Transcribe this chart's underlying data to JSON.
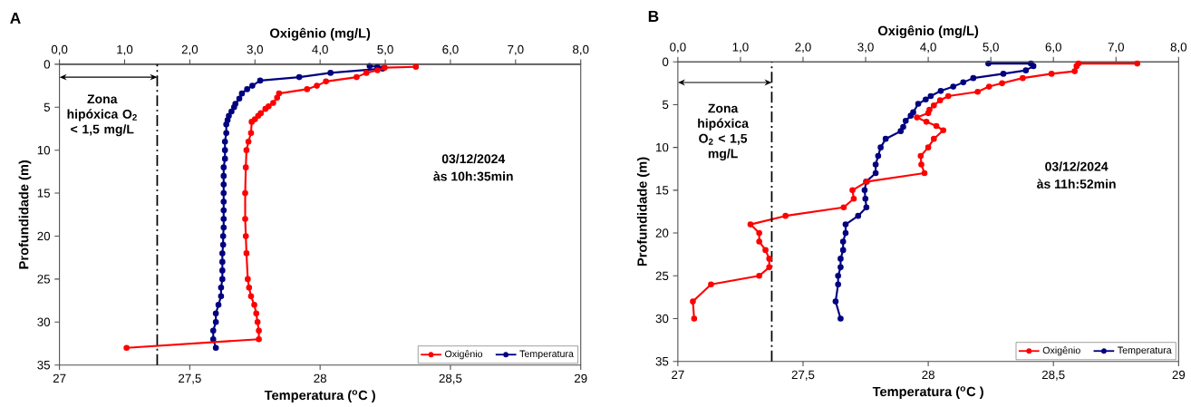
{
  "chart_data": [
    {
      "type": "line",
      "title": "A",
      "xlabel": "Temperatura ($^{o}$C )",
      "x2label": "Oxigênio (mg/L)",
      "ylabel": "Profundidade (m)",
      "xlim": [
        27,
        29
      ],
      "xticks": [
        {
          "value": 27,
          "label": "27"
        },
        {
          "value": 27.5,
          "label": "27,5"
        },
        {
          "value": 28,
          "label": "28"
        },
        {
          "value": 28.5,
          "label": "28,5"
        },
        {
          "value": 29,
          "label": "29"
        }
      ],
      "x2lim": [
        0,
        8
      ],
      "x2ticks": [
        {
          "value": 0,
          "label": "0,0"
        },
        {
          "value": 1,
          "label": "1,0"
        },
        {
          "value": 2,
          "label": "2,0"
        },
        {
          "value": 3,
          "label": "3,0"
        },
        {
          "value": 4,
          "label": "4,0"
        },
        {
          "value": 5,
          "label": "5,0"
        },
        {
          "value": 6,
          "label": "6,0"
        },
        {
          "value": 7,
          "label": "7,0"
        },
        {
          "value": 8,
          "label": "8,0"
        }
      ],
      "ylim": [
        35,
        0
      ],
      "yticks": [
        0,
        5,
        10,
        15,
        20,
        25,
        30,
        35
      ],
      "legend": "bottom right",
      "marker": "circle",
      "series": [
        {
          "name": "Oxigênio",
          "color": "#ff0000",
          "axis": "x2",
          "x": [
            5.47,
            4.99,
            4.88,
            4.71,
            4.56,
            4.09,
            3.95,
            3.8,
            3.37,
            3.34,
            3.28,
            3.21,
            3.16,
            3.09,
            3.05,
            3.0,
            2.95,
            2.94,
            2.9,
            2.87,
            2.86,
            2.85,
            2.85,
            2.86,
            2.87,
            2.89,
            2.91,
            2.94,
            2.99,
            3.02,
            3.04,
            3.06,
            3.06,
            1.03
          ],
          "values": [
            0.3,
            0.4,
            0.7,
            1.0,
            1.5,
            2.0,
            2.5,
            2.9,
            3.4,
            3.9,
            4.5,
            4.9,
            5.2,
            5.7,
            6.0,
            6.4,
            6.7,
            8,
            9,
            10,
            12,
            15,
            18,
            20,
            22,
            25,
            26,
            27,
            28,
            29,
            30,
            31,
            32,
            33
          ]
        },
        {
          "name": "Temperatura",
          "color": "#000080",
          "x": [
            28.19,
            28.22,
            28.24,
            28.04,
            27.92,
            27.77,
            27.74,
            27.72,
            27.7,
            27.69,
            27.675,
            27.67,
            27.66,
            27.65,
            27.645,
            27.64,
            27.64,
            27.635,
            27.635,
            27.635,
            27.63,
            27.63,
            27.63,
            27.63,
            27.63,
            27.63,
            27.63,
            27.63,
            27.628,
            27.628,
            27.625,
            27.625,
            27.625,
            27.625,
            27.62,
            27.62,
            27.61,
            27.6,
            27.6,
            27.59,
            27.59,
            27.6
          ],
          "values": [
            0.2,
            0.3,
            0.5,
            1.0,
            1.5,
            1.9,
            2.5,
            2.9,
            3.4,
            4.0,
            4.6,
            5.0,
            5.5,
            6.0,
            6.5,
            7,
            8,
            9,
            10,
            11,
            12,
            13,
            14,
            15,
            16,
            17,
            18,
            19,
            20,
            21,
            22,
            23,
            24,
            25,
            26,
            27,
            28,
            29,
            30,
            31,
            32,
            33
          ]
        }
      ],
      "ref_lines": [
        {
          "axis": "x2",
          "value": 1.5,
          "color": "#000000",
          "line_style": "dashdot"
        }
      ],
      "annotations": [
        "Zona hipóxica O$_{2}$ < 1,5 mg/L",
        "03/12/2024",
        "às 10h:35min"
      ]
    },
    {
      "type": "line",
      "title": "B",
      "xlabel": "Temperatura ($^{o}$C )",
      "x2label": "Oxigênio (mg/L)",
      "ylabel": "Profundidade (m)",
      "xlim": [
        27,
        29
      ],
      "xticks": [
        {
          "value": 27,
          "label": "27"
        },
        {
          "value": 27.5,
          "label": "27,5"
        },
        {
          "value": 28,
          "label": "28"
        },
        {
          "value": 28.5,
          "label": "28,5"
        },
        {
          "value": 29,
          "label": "29"
        }
      ],
      "x2lim": [
        0,
        8
      ],
      "x2ticks": [
        {
          "value": 0,
          "label": "0,0"
        },
        {
          "value": 1,
          "label": "1,0"
        },
        {
          "value": 2,
          "label": "2,0"
        },
        {
          "value": 3,
          "label": "3,0"
        },
        {
          "value": 4,
          "label": "4,0"
        },
        {
          "value": 5,
          "label": "5,0"
        },
        {
          "value": 6,
          "label": "6,0"
        },
        {
          "value": 7,
          "label": "7,0"
        },
        {
          "value": 8,
          "label": "8,0"
        }
      ],
      "ylim": [
        35,
        0
      ],
      "yticks": [
        0,
        5,
        10,
        15,
        20,
        25,
        30,
        35
      ],
      "legend": "bottom right",
      "marker": "circle",
      "series": [
        {
          "name": "Oxigênio",
          "color": "#ff0000",
          "axis": "x2",
          "x": [
            7.34,
            6.4,
            6.37,
            6.34,
            5.97,
            5.51,
            5.18,
            4.97,
            4.79,
            4.32,
            4.19,
            4.09,
            4.02,
            4.0,
            3.82,
            3.97,
            4.13,
            4.24,
            4.09,
            4.0,
            3.88,
            3.89,
            3.94,
            3.02,
            2.79,
            2.81,
            2.65,
            1.72,
            1.16,
            1.3,
            1.3,
            1.4,
            1.46,
            1.46,
            1.3,
            0.53,
            0.24,
            0.26
          ],
          "values": [
            0.2,
            0.2,
            0.5,
            1.1,
            1.4,
            1.9,
            2.5,
            2.9,
            3.5,
            4.0,
            4.5,
            5.1,
            5.6,
            6.0,
            6.5,
            7.0,
            7.5,
            8.0,
            9,
            10,
            11,
            12,
            13,
            14,
            15,
            16,
            17,
            18,
            19,
            20,
            21,
            22,
            23,
            24,
            25,
            26,
            28,
            30
          ]
        },
        {
          "name": "Temperatura",
          "color": "#000080",
          "x": [
            28.24,
            28.41,
            28.42,
            28.39,
            28.3,
            28.18,
            28.14,
            28.1,
            28.05,
            28.01,
            27.99,
            27.96,
            27.94,
            27.93,
            27.91,
            27.9,
            27.89,
            27.83,
            27.81,
            27.8,
            27.79,
            27.79,
            27.752,
            27.746,
            27.749,
            27.753,
            27.72,
            27.67,
            27.67,
            27.66,
            27.66,
            27.65,
            27.65,
            27.64,
            27.64,
            27.63,
            27.65
          ],
          "values": [
            0.2,
            0.2,
            0.5,
            1.0,
            1.4,
            1.9,
            2.4,
            2.9,
            3.4,
            4.0,
            4.4,
            4.9,
            5.9,
            6.3,
            6.9,
            7.6,
            8.1,
            9,
            10,
            11,
            12,
            13,
            14,
            15,
            16,
            17,
            18,
            19,
            20,
            21,
            22,
            23,
            24,
            25,
            26,
            28,
            30
          ]
        }
      ],
      "ref_lines": [
        {
          "axis": "x2",
          "value": 1.5,
          "color": "#000000",
          "line_style": "dashdot"
        }
      ],
      "annotations": [
        "Zona hipóxica O$_{2}$ < 1,5 mg/L",
        "03/12/2024",
        "às 11h:52min"
      ]
    }
  ]
}
